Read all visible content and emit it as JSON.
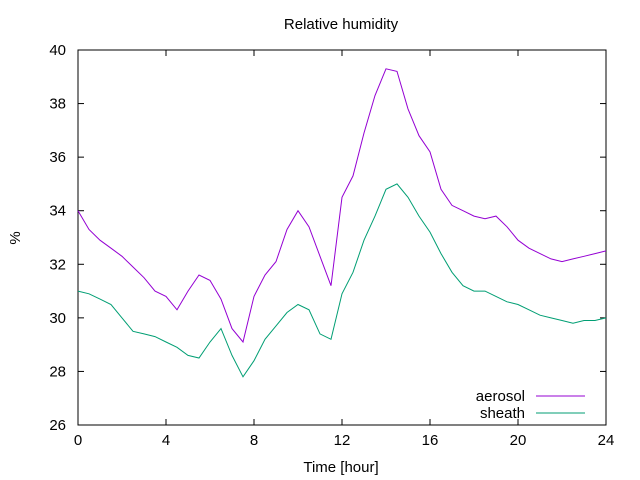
{
  "chart_data": {
    "type": "line",
    "title": "Relative humidity",
    "xlabel": "Time [hour]",
    "ylabel": "%",
    "xlim": [
      0,
      24
    ],
    "ylim": [
      26,
      40
    ],
    "x_ticks": [
      0,
      4,
      8,
      12,
      16,
      20,
      24
    ],
    "y_ticks": [
      26,
      28,
      30,
      32,
      34,
      36,
      38,
      40
    ],
    "grid": false,
    "legend_position": "bottom-right",
    "series": [
      {
        "name": "aerosol",
        "color": "#9400d3",
        "x": [
          0,
          0.5,
          1,
          1.5,
          2,
          2.5,
          3,
          3.5,
          4,
          4.5,
          5,
          5.5,
          6,
          6.5,
          7,
          7.5,
          8,
          8.5,
          9,
          9.5,
          10,
          10.5,
          11,
          11.5,
          12,
          12.5,
          13,
          13.5,
          14,
          14.5,
          15,
          15.5,
          16,
          16.5,
          17,
          17.5,
          18,
          18.5,
          19,
          19.5,
          20,
          20.5,
          21,
          21.5,
          22,
          22.5,
          23,
          23.5,
          24
        ],
        "y": [
          34.0,
          33.3,
          32.9,
          32.6,
          32.3,
          31.9,
          31.5,
          31.0,
          30.8,
          30.3,
          31.0,
          31.6,
          31.4,
          30.7,
          29.6,
          29.1,
          30.8,
          31.6,
          32.1,
          33.3,
          34.0,
          33.4,
          32.3,
          31.2,
          34.5,
          35.3,
          36.9,
          38.3,
          39.3,
          39.2,
          37.8,
          36.8,
          36.2,
          34.8,
          34.2,
          34.0,
          33.8,
          33.7,
          33.8,
          33.4,
          32.9,
          32.6,
          32.4,
          32.2,
          32.1,
          32.2,
          32.3,
          32.4,
          32.5
        ]
      },
      {
        "name": "sheath",
        "color": "#009e73",
        "x": [
          0,
          0.5,
          1,
          1.5,
          2,
          2.5,
          3,
          3.5,
          4,
          4.5,
          5,
          5.5,
          6,
          6.5,
          7,
          7.5,
          8,
          8.5,
          9,
          9.5,
          10,
          10.5,
          11,
          11.5,
          12,
          12.5,
          13,
          13.5,
          14,
          14.5,
          15,
          15.5,
          16,
          16.5,
          17,
          17.5,
          18,
          18.5,
          19,
          19.5,
          20,
          20.5,
          21,
          21.5,
          22,
          22.5,
          23,
          23.5,
          24
        ],
        "y": [
          31.0,
          30.9,
          30.7,
          30.5,
          30.0,
          29.5,
          29.4,
          29.3,
          29.1,
          28.9,
          28.6,
          28.5,
          29.1,
          29.6,
          28.6,
          27.8,
          28.4,
          29.2,
          29.7,
          30.2,
          30.5,
          30.3,
          29.4,
          29.2,
          30.9,
          31.7,
          32.9,
          33.8,
          34.8,
          35.0,
          34.5,
          33.8,
          33.2,
          32.4,
          31.7,
          31.2,
          31.0,
          31.0,
          30.8,
          30.6,
          30.5,
          30.3,
          30.1,
          30.0,
          29.9,
          29.8,
          29.9,
          29.9,
          30.0
        ]
      }
    ]
  }
}
